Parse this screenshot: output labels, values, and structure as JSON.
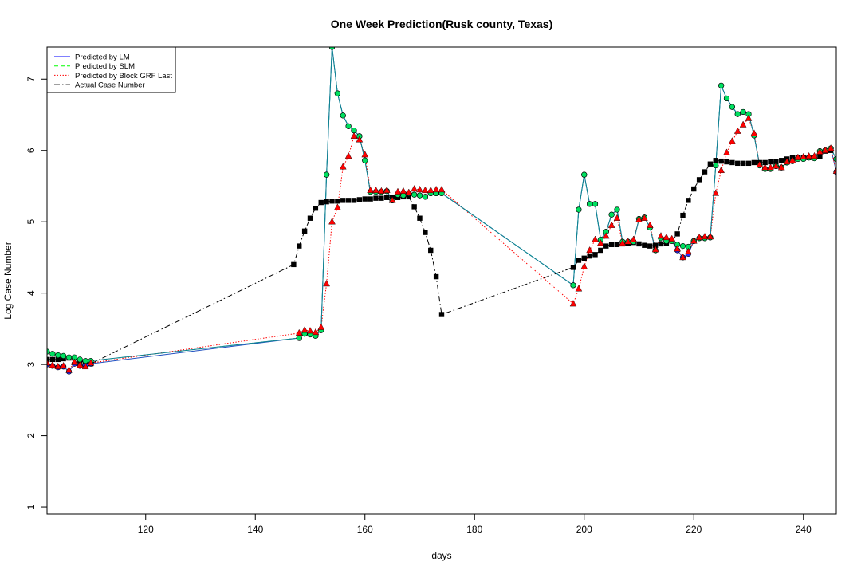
{
  "chart_data": {
    "type": "line",
    "title": "One Week Prediction(Rusk county, Texas)",
    "xlabel": "days",
    "ylabel": "Log Case Number",
    "xlim": [
      102,
      246
    ],
    "ylim": [
      0.9,
      7.45
    ],
    "xticks": [
      120,
      140,
      160,
      180,
      200,
      220,
      240
    ],
    "yticks": [
      1,
      2,
      3,
      4,
      5,
      6,
      7
    ],
    "grid": false,
    "legend_position": "top-left",
    "series": [
      {
        "name": "Predicted by LM",
        "color": "#0000ff",
        "line": "solid",
        "marker": "circle-blue",
        "x": [
          102,
          103,
          104,
          105,
          106,
          107,
          108,
          109,
          110,
          148,
          149,
          150,
          151,
          152,
          153,
          154,
          155,
          156,
          157,
          158,
          159,
          160,
          161,
          162,
          163,
          164,
          165,
          166,
          167,
          168,
          169,
          170,
          171,
          172,
          173,
          174,
          198,
          199,
          200,
          201,
          202,
          203,
          204,
          205,
          206,
          207,
          208,
          209,
          210,
          211,
          212,
          213,
          214,
          215,
          216,
          217,
          218,
          219,
          220,
          221,
          222,
          223,
          224,
          225,
          226,
          227,
          228,
          229,
          230,
          231,
          232,
          233,
          234,
          235,
          236,
          237,
          238,
          239,
          240,
          241,
          242,
          243,
          244,
          245,
          246
        ],
        "y": [
          3.0,
          2.98,
          2.96,
          2.97,
          2.9,
          3.01,
          2.98,
          2.99,
          3.01,
          3.37,
          3.43,
          3.42,
          3.4,
          3.48,
          5.66,
          7.45,
          6.8,
          6.49,
          6.34,
          6.28,
          6.2,
          5.86,
          5.42,
          5.42,
          5.42,
          5.43,
          5.3,
          5.38,
          5.37,
          5.4,
          5.38,
          5.37,
          5.35,
          5.4,
          5.4,
          5.4,
          4.11,
          5.17,
          5.66,
          5.25,
          5.25,
          4.75,
          4.86,
          5.1,
          5.17,
          4.72,
          4.72,
          4.72,
          5.04,
          5.06,
          4.92,
          4.6,
          4.77,
          4.73,
          4.73,
          4.6,
          4.5,
          4.55,
          4.73,
          4.77,
          4.77,
          4.78,
          5.79,
          6.91,
          6.73,
          6.61,
          6.51,
          6.54,
          6.51,
          6.21,
          5.79,
          5.74,
          5.74,
          5.78,
          5.76,
          5.83,
          5.85,
          5.88,
          5.88,
          5.9,
          5.89,
          5.99,
          6.0,
          6.03,
          5.7
        ]
      },
      {
        "name": "Predicted by SLM",
        "color": "#00ff00",
        "line": "dashed",
        "marker": "circle-green",
        "x": [
          102,
          103,
          104,
          105,
          106,
          107,
          108,
          109,
          110,
          148,
          149,
          150,
          151,
          152,
          153,
          154,
          155,
          156,
          157,
          158,
          159,
          160,
          161,
          162,
          163,
          164,
          165,
          166,
          167,
          168,
          169,
          170,
          171,
          172,
          173,
          174,
          198,
          199,
          200,
          201,
          202,
          203,
          204,
          205,
          206,
          207,
          208,
          209,
          210,
          211,
          212,
          213,
          214,
          215,
          216,
          217,
          218,
          219,
          220,
          221,
          222,
          223,
          224,
          225,
          226,
          227,
          228,
          229,
          230,
          231,
          232,
          233,
          234,
          235,
          236,
          237,
          238,
          239,
          240,
          241,
          242,
          243,
          244,
          245,
          246
        ],
        "y": [
          3.18,
          3.15,
          3.13,
          3.12,
          3.1,
          3.1,
          3.07,
          3.05,
          3.05,
          3.37,
          3.43,
          3.42,
          3.4,
          3.48,
          5.66,
          7.45,
          6.8,
          6.49,
          6.34,
          6.28,
          6.2,
          5.86,
          5.42,
          5.42,
          5.42,
          5.43,
          5.3,
          5.38,
          5.37,
          5.4,
          5.38,
          5.37,
          5.35,
          5.4,
          5.4,
          5.4,
          4.11,
          5.17,
          5.66,
          5.25,
          5.25,
          4.75,
          4.86,
          5.1,
          5.17,
          4.72,
          4.72,
          4.72,
          5.04,
          5.06,
          4.92,
          4.6,
          4.77,
          4.73,
          4.73,
          4.68,
          4.66,
          4.65,
          4.73,
          4.77,
          4.77,
          4.78,
          5.79,
          6.91,
          6.73,
          6.61,
          6.51,
          6.54,
          6.51,
          6.21,
          5.79,
          5.74,
          5.74,
          5.78,
          5.76,
          5.83,
          5.85,
          5.88,
          5.88,
          5.9,
          5.89,
          5.99,
          6.0,
          6.03,
          5.88
        ]
      },
      {
        "name": "Predicted by Block GRF Last",
        "color": "#ff0000",
        "line": "dotted",
        "marker": "triangle-red",
        "x": [
          102,
          103,
          104,
          105,
          106,
          107,
          108,
          109,
          110,
          148,
          149,
          150,
          151,
          152,
          153,
          154,
          155,
          156,
          157,
          158,
          159,
          160,
          161,
          162,
          163,
          164,
          165,
          166,
          167,
          168,
          169,
          170,
          171,
          172,
          173,
          174,
          198,
          199,
          200,
          201,
          202,
          203,
          204,
          205,
          206,
          207,
          208,
          209,
          210,
          211,
          212,
          213,
          214,
          215,
          216,
          217,
          218,
          219,
          220,
          221,
          222,
          223,
          224,
          225,
          226,
          227,
          228,
          229,
          230,
          231,
          232,
          233,
          234,
          235,
          236,
          237,
          238,
          239,
          240,
          241,
          242,
          243,
          244,
          245,
          246
        ],
        "y": [
          3.02,
          2.99,
          2.97,
          2.98,
          2.92,
          3.03,
          2.99,
          2.97,
          3.02,
          3.44,
          3.48,
          3.47,
          3.45,
          3.52,
          4.13,
          5.0,
          5.2,
          5.77,
          5.92,
          6.2,
          6.15,
          5.94,
          5.44,
          5.44,
          5.43,
          5.44,
          5.3,
          5.42,
          5.43,
          5.41,
          5.46,
          5.45,
          5.44,
          5.44,
          5.45,
          5.45,
          3.85,
          4.06,
          4.37,
          4.6,
          4.75,
          4.7,
          4.8,
          4.95,
          5.05,
          4.7,
          4.72,
          4.75,
          5.03,
          5.05,
          4.95,
          4.61,
          4.8,
          4.78,
          4.76,
          4.62,
          4.5,
          4.58,
          4.73,
          4.78,
          4.79,
          4.79,
          5.4,
          5.72,
          5.97,
          6.13,
          6.27,
          6.36,
          6.45,
          6.24,
          5.8,
          5.76,
          5.76,
          5.78,
          5.76,
          5.84,
          5.86,
          5.9,
          5.91,
          5.92,
          5.92,
          5.98,
          6.0,
          6.03,
          5.71
        ]
      },
      {
        "name": "Actual Case Number",
        "color": "#000000",
        "line": "dashdot",
        "marker": "square-black",
        "x": [
          102,
          103,
          104,
          105,
          106,
          107,
          108,
          109,
          110,
          147,
          148,
          149,
          150,
          151,
          152,
          153,
          154,
          155,
          156,
          157,
          158,
          159,
          160,
          161,
          162,
          163,
          164,
          165,
          166,
          167,
          168,
          169,
          170,
          171,
          172,
          173,
          174,
          198,
          199,
          200,
          201,
          202,
          203,
          204,
          205,
          206,
          207,
          208,
          209,
          210,
          211,
          212,
          213,
          214,
          215,
          216,
          217,
          218,
          219,
          220,
          221,
          222,
          223,
          224,
          225,
          226,
          227,
          228,
          229,
          230,
          231,
          232,
          233,
          234,
          235,
          236,
          237,
          238,
          239,
          240,
          241,
          242,
          243,
          244,
          245
        ],
        "y": [
          3.07,
          3.07,
          3.07,
          3.08,
          3.09,
          3.09,
          3.05,
          3.03,
          3.01,
          4.4,
          4.66,
          4.87,
          5.05,
          5.19,
          5.27,
          5.28,
          5.29,
          5.29,
          5.3,
          5.3,
          5.3,
          5.31,
          5.32,
          5.32,
          5.33,
          5.33,
          5.34,
          5.34,
          5.34,
          5.35,
          5.35,
          5.21,
          5.05,
          4.85,
          4.6,
          4.23,
          3.7,
          4.36,
          4.46,
          4.49,
          4.52,
          4.54,
          4.6,
          4.66,
          4.68,
          4.68,
          4.69,
          4.7,
          4.71,
          4.69,
          4.67,
          4.66,
          4.67,
          4.69,
          4.7,
          4.73,
          4.83,
          5.09,
          5.3,
          5.46,
          5.59,
          5.7,
          5.81,
          5.86,
          5.85,
          5.84,
          5.83,
          5.82,
          5.82,
          5.82,
          5.83,
          5.83,
          5.83,
          5.84,
          5.84,
          5.86,
          5.88,
          5.9,
          5.9,
          5.9,
          5.9,
          5.9,
          5.92,
          5.99,
          6.0
        ]
      }
    ]
  }
}
